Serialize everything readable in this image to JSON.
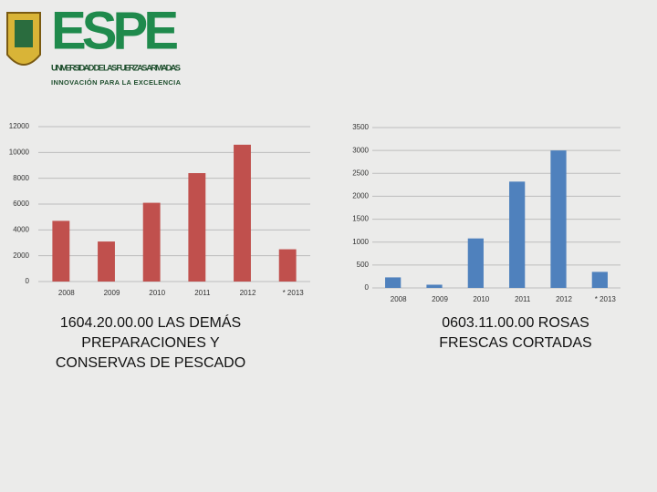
{
  "header": {
    "logo_title": "ESPE",
    "logo_subtitle": "UNIVERSIDAD DE LAS FUERZAS ARMADAS",
    "logo_motto": "INNOVACIÓN PARA LA EXCELENCIA"
  },
  "chart_data": [
    {
      "type": "bar",
      "title": "1604.20.00.00 LAS DEMÁS PREPARACIONES Y CONSERVAS DE PESCADO",
      "categories": [
        "2008",
        "2009",
        "2010",
        "2011",
        "2012",
        "* 2013"
      ],
      "values": [
        4700,
        3100,
        6100,
        8400,
        10600,
        2500
      ],
      "color": "#c0504d",
      "ylim": [
        0,
        12000
      ],
      "yticks": [
        0,
        2000,
        4000,
        6000,
        8000,
        10000,
        12000
      ],
      "grid": true
    },
    {
      "type": "bar",
      "title": "0603.11.00.00 ROSAS FRESCAS CORTADAS",
      "categories": [
        "2008",
        "2009",
        "2010",
        "2011",
        "2012",
        "* 2013"
      ],
      "values": [
        230,
        70,
        1080,
        2320,
        3000,
        350
      ],
      "color": "#4f81bd",
      "ylim": [
        0,
        3500
      ],
      "yticks": [
        0,
        500,
        1000,
        1500,
        2000,
        2500,
        3000,
        3500
      ],
      "grid": true
    }
  ]
}
